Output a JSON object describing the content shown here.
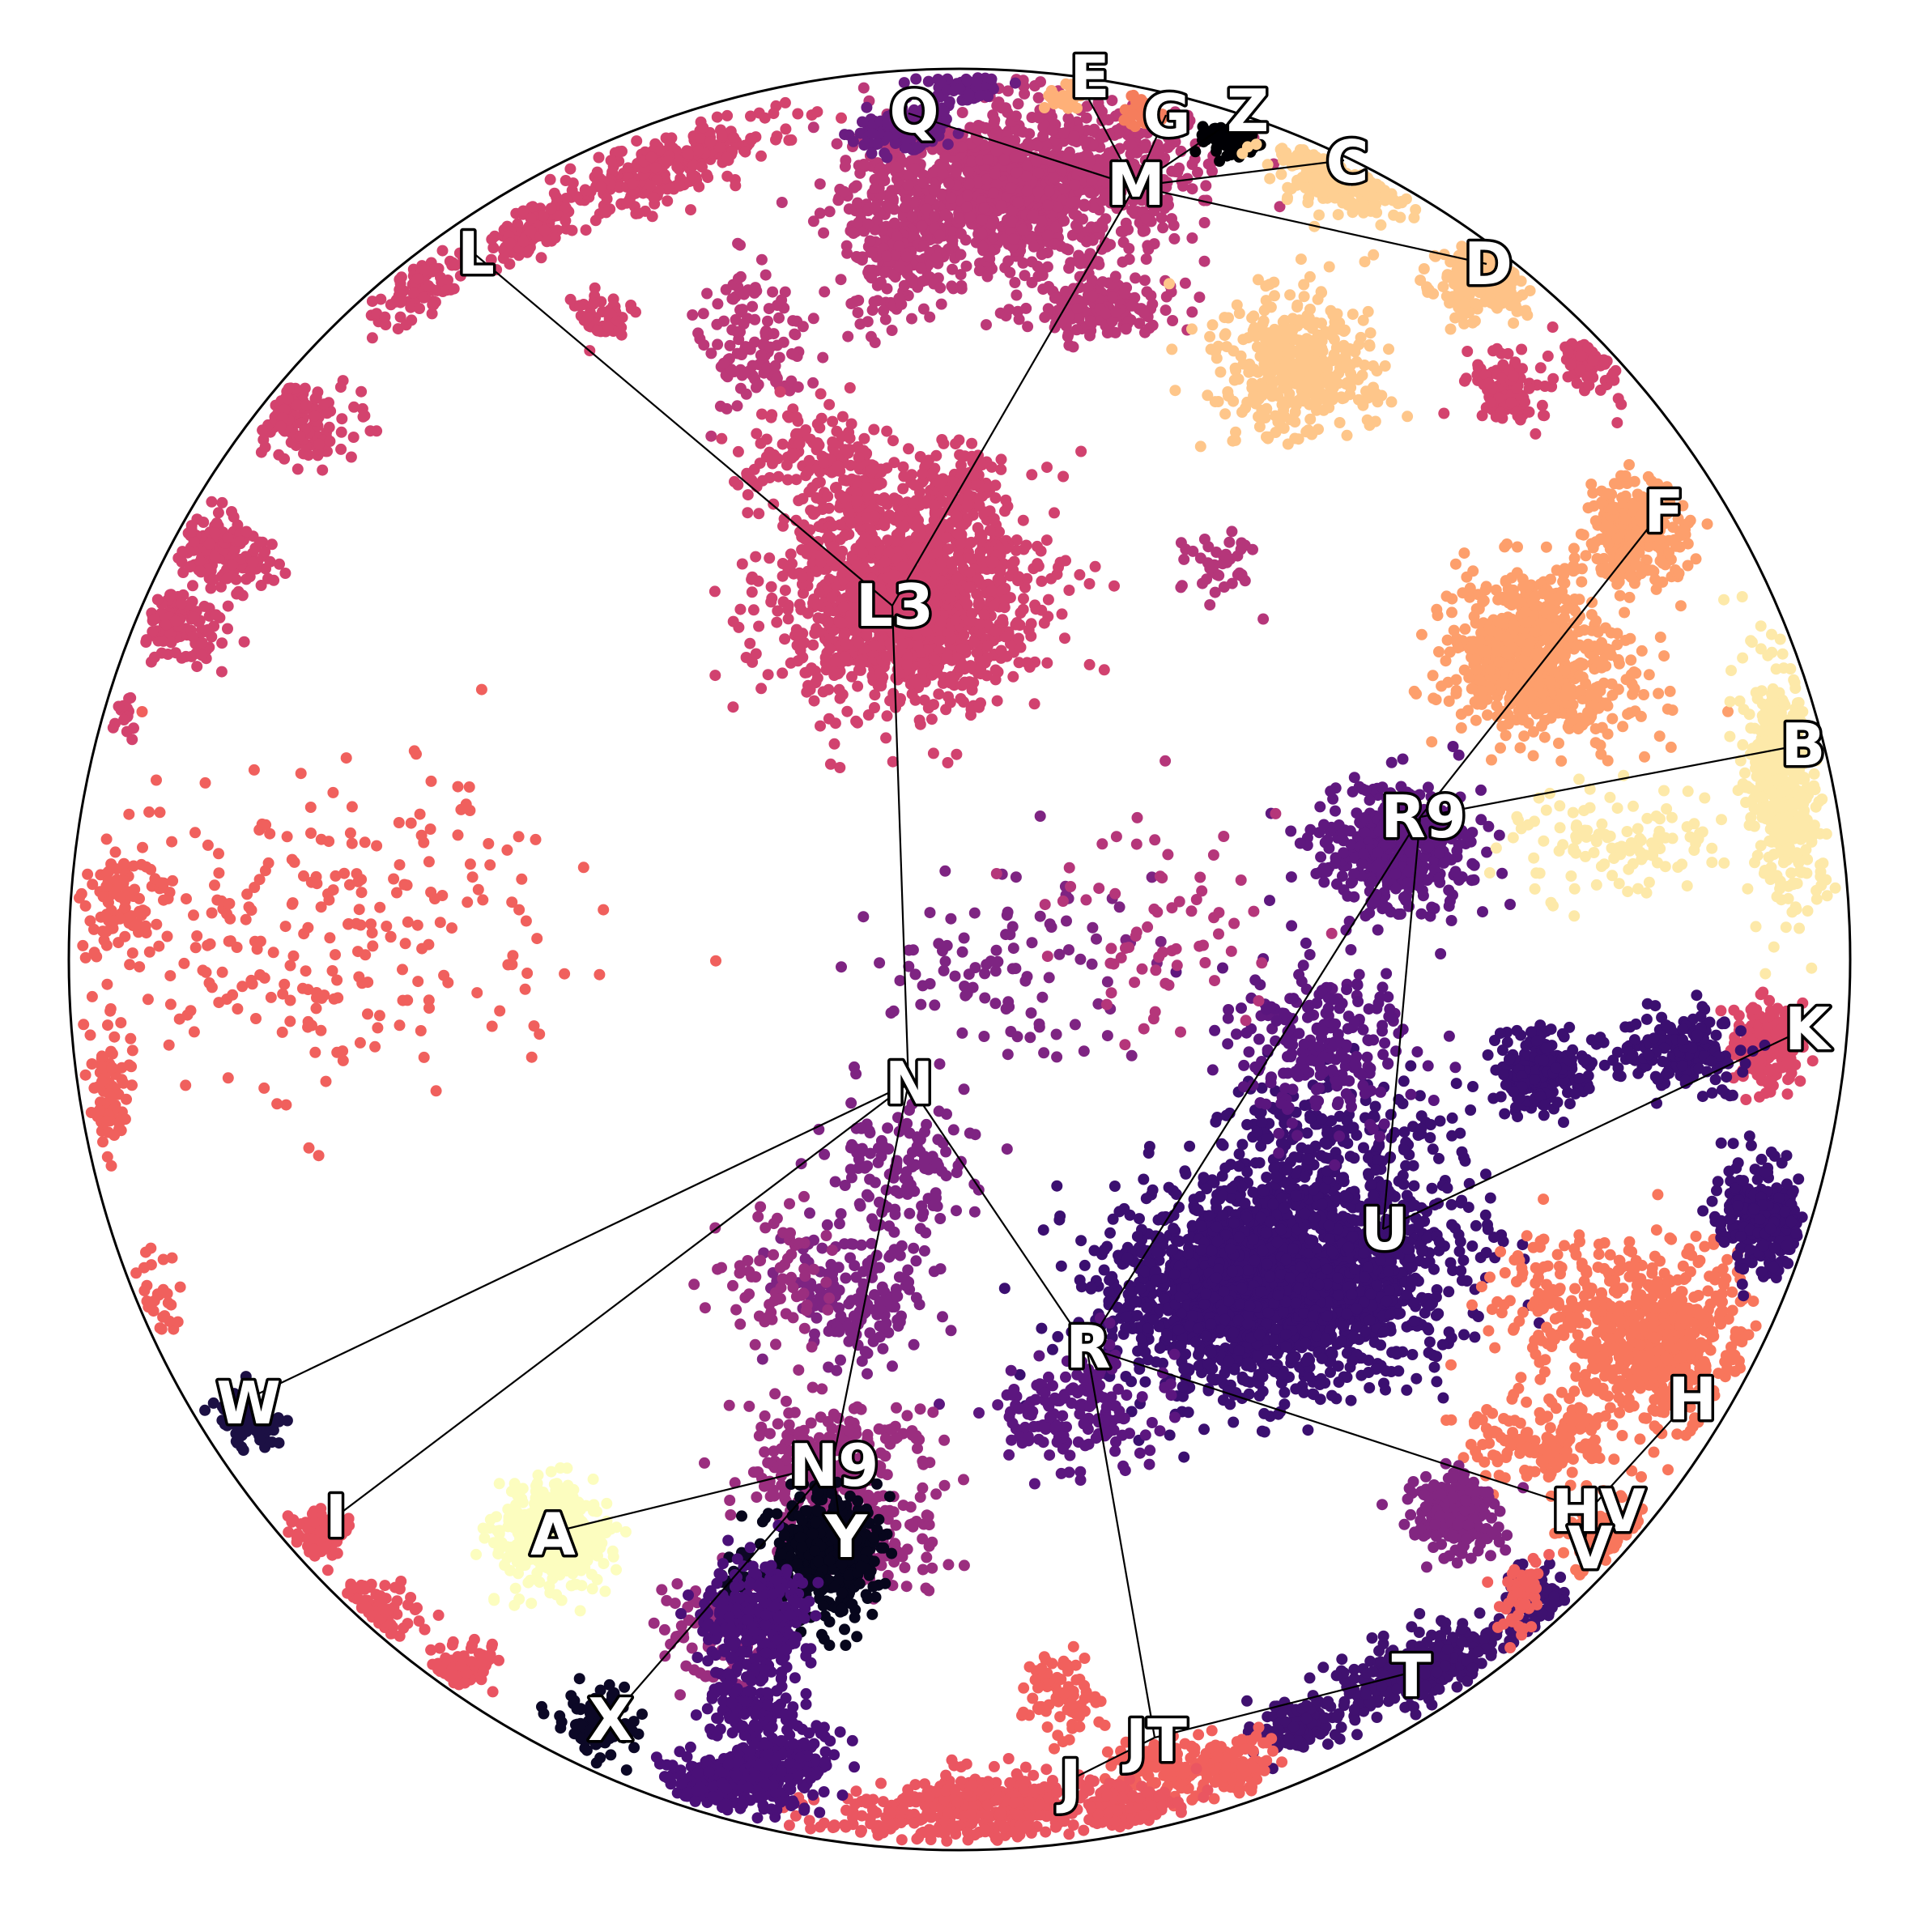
{
  "figure": {
    "type": "hyperbolic-tree-embedding",
    "boundary": "unit-disk",
    "colormap": "magma"
  },
  "nodes": [
    {
      "id": "M",
      "label": "M"
    },
    {
      "id": "E",
      "label": "E"
    },
    {
      "id": "Q",
      "label": "Q"
    },
    {
      "id": "G",
      "label": "G"
    },
    {
      "id": "Z",
      "label": "Z"
    },
    {
      "id": "C",
      "label": "C"
    },
    {
      "id": "D",
      "label": "D"
    },
    {
      "id": "L",
      "label": "L"
    },
    {
      "id": "L3",
      "label": "L3"
    },
    {
      "id": "F",
      "label": "F"
    },
    {
      "id": "R9",
      "label": "R9"
    },
    {
      "id": "B",
      "label": "B"
    },
    {
      "id": "K",
      "label": "K"
    },
    {
      "id": "U",
      "label": "U"
    },
    {
      "id": "N",
      "label": "N"
    },
    {
      "id": "W",
      "label": "W"
    },
    {
      "id": "I",
      "label": "I"
    },
    {
      "id": "R",
      "label": "R"
    },
    {
      "id": "H",
      "label": "H"
    },
    {
      "id": "HV",
      "label": "HV"
    },
    {
      "id": "V",
      "label": "V"
    },
    {
      "id": "N9",
      "label": "N9"
    },
    {
      "id": "A",
      "label": "A"
    },
    {
      "id": "Y",
      "label": "Y"
    },
    {
      "id": "X",
      "label": "X"
    },
    {
      "id": "T",
      "label": "T"
    },
    {
      "id": "JT",
      "label": "JT"
    },
    {
      "id": "J",
      "label": "J"
    }
  ],
  "edges": [
    [
      "M",
      "E"
    ],
    [
      "M",
      "Q"
    ],
    [
      "M",
      "G"
    ],
    [
      "M",
      "Z"
    ],
    [
      "M",
      "C"
    ],
    [
      "M",
      "D"
    ],
    [
      "M",
      "L3"
    ],
    [
      "L",
      "L3"
    ],
    [
      "L3",
      "N"
    ],
    [
      "F",
      "R9"
    ],
    [
      "R9",
      "B"
    ],
    [
      "R9",
      "U"
    ],
    [
      "R9",
      "R"
    ],
    [
      "K",
      "U"
    ],
    [
      "N",
      "W"
    ],
    [
      "N",
      "I"
    ],
    [
      "N",
      "R"
    ],
    [
      "N",
      "N9"
    ],
    [
      "R",
      "HV"
    ],
    [
      "HV",
      "H"
    ],
    [
      "HV",
      "V"
    ],
    [
      "R",
      "JT"
    ],
    [
      "N9",
      "A"
    ],
    [
      "N9",
      "Y"
    ],
    [
      "N9",
      "X"
    ],
    [
      "JT",
      "T"
    ],
    [
      "JT",
      "J"
    ]
  ],
  "clusters": [
    {
      "id": "M",
      "color": "#bc3978"
    },
    {
      "id": "L3",
      "color": "#d1426f"
    },
    {
      "id": "L",
      "color": "#d3436e"
    },
    {
      "id": "Q",
      "color": "#6a1c81"
    },
    {
      "id": "E",
      "color": "#feb078"
    },
    {
      "id": "G",
      "color": "#f57d5c"
    },
    {
      "id": "Z",
      "color": "#000004"
    },
    {
      "id": "C",
      "color": "#fecf92"
    },
    {
      "id": "D",
      "color": "#fec68a"
    },
    {
      "id": "D2",
      "color": "#fec287"
    },
    {
      "id": "F",
      "color": "#fd9f6c"
    },
    {
      "id": "R9",
      "color": "#5f187f"
    },
    {
      "id": "B",
      "color": "#fde9a9"
    },
    {
      "id": "K",
      "color": "#dc4869"
    },
    {
      "id": "U",
      "color": "#3b0f70"
    },
    {
      "id": "N",
      "color": "#7e2482"
    },
    {
      "id": "W",
      "color": "#1c1044"
    },
    {
      "id": "I",
      "color": "#e95462"
    },
    {
      "id": "R",
      "color": "#5c167f"
    },
    {
      "id": "H",
      "color": "#f8765c"
    },
    {
      "id": "HV",
      "color": "#822681"
    },
    {
      "id": "V",
      "color": "#3e1170"
    },
    {
      "id": "N9",
      "color": "#9b2e7f"
    },
    {
      "id": "A",
      "color": "#fcfdbf"
    },
    {
      "id": "Y",
      "color": "#07061c"
    },
    {
      "id": "X",
      "color": "#0c0826"
    },
    {
      "id": "T",
      "color": "#40116f"
    },
    {
      "id": "JT",
      "color": "#f1605d"
    },
    {
      "id": "J",
      "color": "#ea5661"
    },
    {
      "id": "purple-low",
      "color": "#4a1078"
    },
    {
      "id": "left-mixed",
      "color": "#f0605d"
    },
    {
      "id": "right-dark",
      "color": "#3b0f70"
    },
    {
      "id": "right-mid",
      "color": "#5a167e"
    },
    {
      "id": "magenta-right",
      "color": "#b5367a"
    }
  ]
}
